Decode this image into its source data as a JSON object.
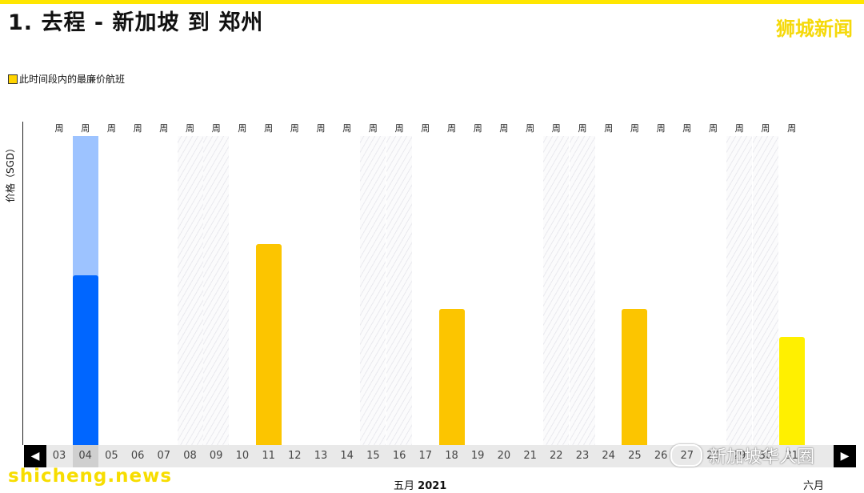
{
  "header": {
    "title": "1. 去程 - 新加坡 到 郑州",
    "logo": "狮城新闻"
  },
  "legend": {
    "label": "此时间段内的最廉价航班"
  },
  "axis": {
    "ylabel": "价格（SGD）"
  },
  "days": [
    "03",
    "04",
    "05",
    "06",
    "07",
    "08",
    "09",
    "10",
    "11",
    "12",
    "13",
    "14",
    "15",
    "16",
    "17",
    "18",
    "19",
    "20",
    "21",
    "22",
    "23",
    "24",
    "25",
    "26",
    "27",
    "28",
    "29",
    "30",
    "31"
  ],
  "weekday_label": "周",
  "months": {
    "may": "五月",
    "year": "2021",
    "june": "六月"
  },
  "watermarks": {
    "left": "shicheng.news",
    "right": "新加坡华人圈"
  },
  "colors": {
    "accent": "#ffe600",
    "cheapest": "#fcc500",
    "selected": "#0066ff",
    "selected_light": "#9dc3ff",
    "latest": "#fff000"
  },
  "chart_data": {
    "type": "bar",
    "categories": [
      "03",
      "04",
      "05",
      "06",
      "07",
      "08",
      "09",
      "10",
      "11",
      "12",
      "13",
      "14",
      "15",
      "16",
      "17",
      "18",
      "19",
      "20",
      "21",
      "22",
      "23",
      "24",
      "25",
      "26",
      "27",
      "28",
      "29",
      "30",
      "31"
    ],
    "values": [
      null,
      55,
      null,
      null,
      null,
      null,
      null,
      null,
      65,
      null,
      null,
      null,
      null,
      null,
      null,
      44,
      null,
      null,
      null,
      null,
      null,
      null,
      44,
      null,
      null,
      null,
      null,
      null,
      35
    ],
    "selected_total": 100,
    "weekend_days": [
      "08",
      "09",
      "15",
      "16",
      "22",
      "23",
      "29",
      "30"
    ],
    "ylabel": "价格（SGD）",
    "legend": "此时间段内的最廉价航班"
  }
}
